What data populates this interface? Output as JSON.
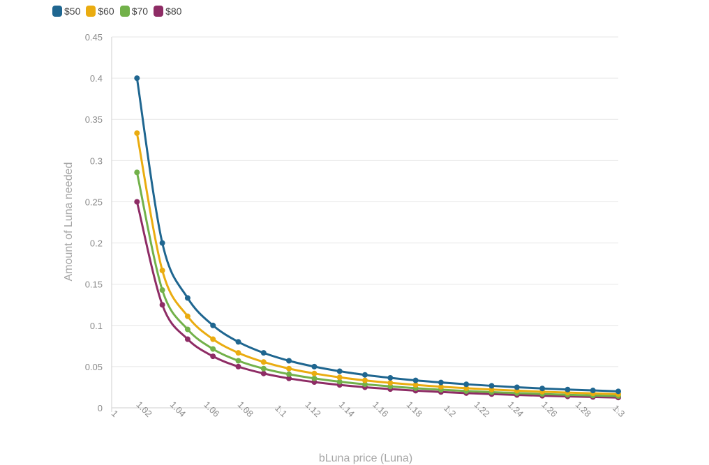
{
  "chart_data": {
    "type": "line",
    "xlabel": "bLuna price (Luna)",
    "ylabel": "Amount of Luna needed",
    "xlim": [
      1,
      1.3
    ],
    "ylim": [
      0,
      0.45
    ],
    "x_ticks": [
      "1",
      "1.02",
      "1.04",
      "1.06",
      "1.08",
      "1.1",
      "1.12",
      "1.14",
      "1.16",
      "1.18",
      "1.2",
      "1.22",
      "1.24",
      "1.26",
      "1.28",
      "1.3"
    ],
    "y_ticks": [
      "0",
      "0.05",
      "0.1",
      "0.15",
      "0.2",
      "0.25",
      "0.3",
      "0.35",
      "0.4",
      "0.45"
    ],
    "grid": "horizontal",
    "legend_position": "top-left",
    "x": [
      1.015,
      1.03,
      1.045,
      1.06,
      1.075,
      1.09,
      1.105,
      1.12,
      1.135,
      1.15,
      1.165,
      1.18,
      1.195,
      1.21,
      1.225,
      1.24,
      1.255,
      1.27,
      1.285,
      1.3
    ],
    "series": [
      {
        "name": "$50",
        "color": "#1f6690",
        "values": [
          0.4,
          0.2,
          0.1333,
          0.1,
          0.08,
          0.0667,
          0.0571,
          0.05,
          0.0444,
          0.04,
          0.0364,
          0.0333,
          0.0308,
          0.0286,
          0.0267,
          0.025,
          0.0235,
          0.0222,
          0.0211,
          0.02
        ]
      },
      {
        "name": "$60",
        "color": "#eaac10",
        "values": [
          0.3333,
          0.1667,
          0.1111,
          0.0833,
          0.0667,
          0.0556,
          0.0476,
          0.0417,
          0.037,
          0.0333,
          0.0303,
          0.0278,
          0.0256,
          0.0238,
          0.0222,
          0.0208,
          0.0196,
          0.0185,
          0.0175,
          0.0167
        ]
      },
      {
        "name": "$70",
        "color": "#72b14a",
        "values": [
          0.2857,
          0.1429,
          0.0952,
          0.0714,
          0.0571,
          0.0476,
          0.0408,
          0.0357,
          0.0317,
          0.0286,
          0.026,
          0.0238,
          0.022,
          0.0204,
          0.019,
          0.0179,
          0.0168,
          0.0159,
          0.015,
          0.0143
        ]
      },
      {
        "name": "$80",
        "color": "#8e2c65",
        "values": [
          0.25,
          0.125,
          0.0833,
          0.0625,
          0.05,
          0.0417,
          0.0357,
          0.0313,
          0.0278,
          0.025,
          0.0227,
          0.0208,
          0.0192,
          0.0179,
          0.0167,
          0.0156,
          0.0147,
          0.0139,
          0.0132,
          0.0125
        ]
      }
    ]
  }
}
